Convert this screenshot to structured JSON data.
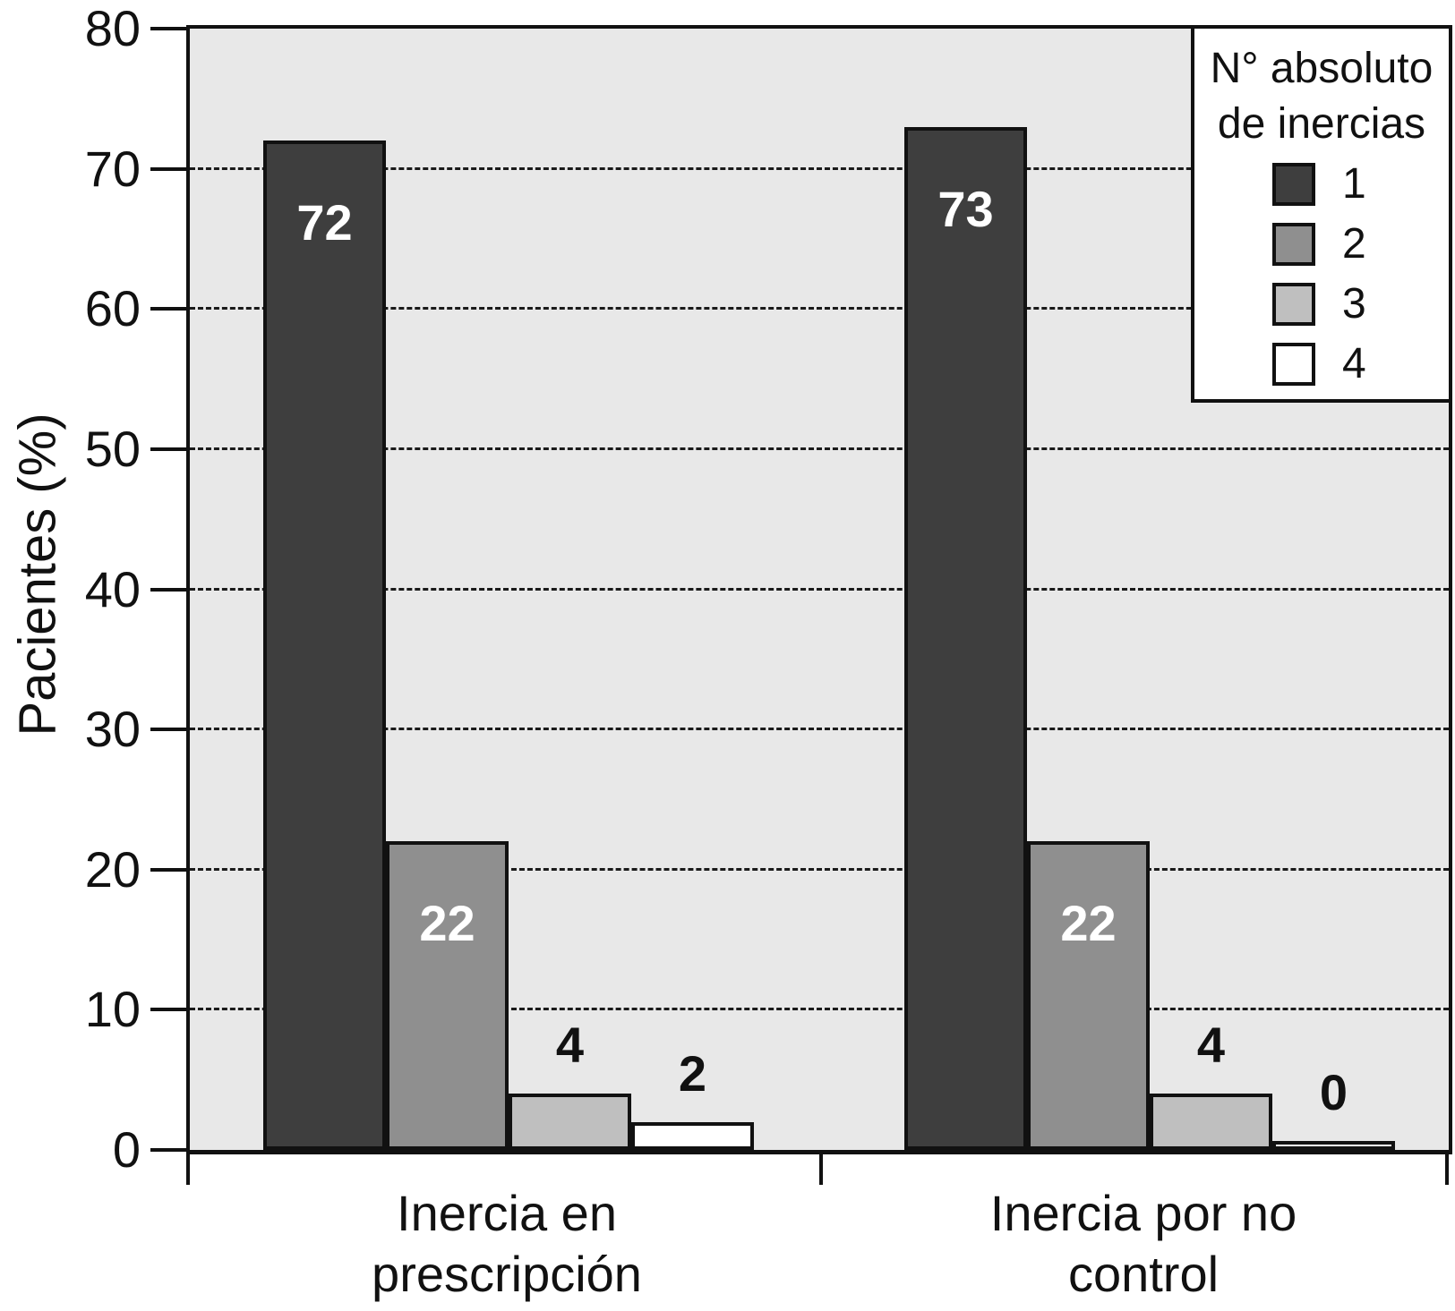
{
  "chart_data": {
    "type": "bar",
    "title": "",
    "ylabel": "Pacientes (%)",
    "ylim": [
      0,
      80
    ],
    "yticks": [
      0,
      10,
      20,
      30,
      40,
      50,
      60,
      70,
      80
    ],
    "grid": "horizontal-dashed",
    "categories": [
      "Inercia en prescripción",
      "Inercia por no control"
    ],
    "category_lines": [
      [
        "Inercia en",
        "prescripción"
      ],
      [
        "Inercia por no",
        "control"
      ]
    ],
    "series": [
      {
        "name": "1",
        "color": "#3e3e3e",
        "label_color": "#ffffff",
        "values": [
          72,
          73
        ]
      },
      {
        "name": "2",
        "color": "#8f8f8f",
        "label_color": "#ffffff",
        "values": [
          22,
          22
        ]
      },
      {
        "name": "3",
        "color": "#bfbfbf",
        "label_color": "#111111",
        "values": [
          4,
          4
        ]
      },
      {
        "name": "4",
        "color": "#ffffff",
        "label_color": "#111111",
        "values": [
          2,
          0
        ]
      }
    ],
    "legend": {
      "position": "top-right-inside",
      "title_lines": [
        "N° absoluto",
        "de inercias"
      ],
      "entries": [
        {
          "label": "1",
          "color": "#3e3e3e"
        },
        {
          "label": "2",
          "color": "#8f8f8f"
        },
        {
          "label": "3",
          "color": "#bfbfbf"
        },
        {
          "label": "4",
          "color": "#ffffff"
        }
      ]
    }
  },
  "colors": {
    "plot_background": "#e8e8e8",
    "axis": "#111111",
    "bar_border": "#111111",
    "value_label_inside": "#ffffff",
    "value_label_outside": "#111111"
  }
}
